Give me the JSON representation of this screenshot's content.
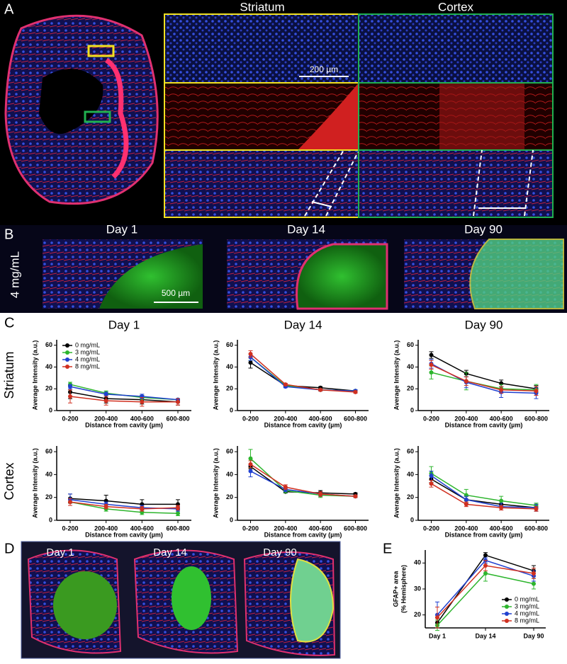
{
  "panel_a": {
    "label": "A",
    "columns": [
      "Striatum",
      "Cortex"
    ],
    "scale_bar": "200 µm"
  },
  "panel_b": {
    "label": "B",
    "row_label": "4 mg/mL",
    "columns": [
      "Day 1",
      "Day 14",
      "Day 90"
    ],
    "scale_bar": "500 µm"
  },
  "panel_c": {
    "label": "C",
    "row_labels": [
      "Striatum",
      "Cortex"
    ]
  },
  "panel_d": {
    "label": "D",
    "columns": [
      "Day 1",
      "Day 14",
      "Day 90"
    ]
  },
  "panel_e": {
    "label": "E"
  },
  "chart_data": [
    {
      "type": "line",
      "title": "Day 1",
      "y_label": "Average Intensity (a.u.)",
      "x_label": "Distance from cavity (µm)",
      "categories": [
        "0-200",
        "200-400",
        "400-600",
        "600-800"
      ],
      "ylim": [
        0,
        65
      ],
      "yticks": [
        0,
        20,
        40,
        60
      ],
      "legend": "top-left",
      "series": [
        {
          "name": "0 mg/mL",
          "color": "#000000",
          "values": [
            17,
            11,
            10,
            8
          ],
          "errors": [
            6,
            4,
            4,
            3
          ]
        },
        {
          "name": "3 mg/mL",
          "color": "#2db52d",
          "values": [
            24,
            16,
            12,
            10
          ],
          "errors": [
            2,
            2,
            2,
            1
          ]
        },
        {
          "name": "4 mg/mL",
          "color": "#2040d0",
          "values": [
            22,
            15,
            13,
            10
          ],
          "errors": [
            2,
            2,
            2,
            1
          ]
        },
        {
          "name": "8 mg/mL",
          "color": "#d03020",
          "values": [
            13,
            9,
            8,
            8
          ],
          "errors": [
            6,
            4,
            4,
            3
          ]
        }
      ]
    },
    {
      "type": "line",
      "title": "Day 14",
      "y_label": "Average Intensity (a.u.)",
      "x_label": "Distance from cavity (µm)",
      "categories": [
        "0-200",
        "200-400",
        "400-600",
        "600-800"
      ],
      "ylim": [
        0,
        65
      ],
      "yticks": [
        0,
        20,
        40,
        60
      ],
      "series": [
        {
          "color": "#000000",
          "values": [
            44,
            23,
            21,
            18
          ],
          "errors": [
            5,
            1,
            1,
            1
          ]
        },
        {
          "color": "#2db52d",
          "values": [
            49,
            23,
            19,
            18
          ],
          "errors": [
            3,
            1,
            1,
            1
          ]
        },
        {
          "color": "#2040d0",
          "values": [
            49,
            22,
            19,
            18
          ],
          "errors": [
            3,
            1,
            1,
            1
          ]
        },
        {
          "color": "#d03020",
          "values": [
            52,
            24,
            19,
            17
          ],
          "errors": [
            3,
            1,
            1,
            1
          ]
        }
      ]
    },
    {
      "type": "line",
      "title": "Day 90",
      "y_label": "Average Intensity (a.u.)",
      "x_label": "Distance from cavity (µm)",
      "categories": [
        "0-200",
        "200-400",
        "400-600",
        "600-800"
      ],
      "ylim": [
        0,
        65
      ],
      "yticks": [
        0,
        20,
        40,
        60
      ],
      "series": [
        {
          "color": "#000000",
          "values": [
            51,
            34,
            25,
            20
          ],
          "errors": [
            3,
            3,
            3,
            3
          ]
        },
        {
          "color": "#2db52d",
          "values": [
            35,
            27,
            20,
            19
          ],
          "errors": [
            6,
            8,
            4,
            5
          ]
        },
        {
          "color": "#2040d0",
          "values": [
            43,
            26,
            17,
            16
          ],
          "errors": [
            4,
            5,
            5,
            5
          ]
        },
        {
          "color": "#d03020",
          "values": [
            42,
            27,
            19,
            18
          ],
          "errors": [
            4,
            4,
            3,
            4
          ]
        }
      ]
    },
    {
      "type": "line",
      "y_label": "Average Intensity (a.u.)",
      "x_label": "Distance from cavity (µm)",
      "categories": [
        "0-200",
        "200-400",
        "400-600",
        "600-800"
      ],
      "ylim": [
        0,
        65
      ],
      "yticks": [
        0,
        20,
        40,
        60
      ],
      "series": [
        {
          "color": "#000000",
          "values": [
            19,
            17,
            14,
            14
          ],
          "errors": [
            4,
            5,
            4,
            4
          ]
        },
        {
          "color": "#2db52d",
          "values": [
            16,
            10,
            7,
            6
          ],
          "errors": [
            3,
            2,
            2,
            2
          ]
        },
        {
          "color": "#2040d0",
          "values": [
            18,
            14,
            11,
            10
          ],
          "errors": [
            5,
            2,
            2,
            2
          ]
        },
        {
          "color": "#d03020",
          "values": [
            16,
            12,
            10,
            11
          ],
          "errors": [
            3,
            2,
            2,
            2
          ]
        }
      ]
    },
    {
      "type": "line",
      "y_label": "Average Intensity (a.u.)",
      "x_label": "Distance from cavity (µm)",
      "categories": [
        "0-200",
        "200-400",
        "400-600",
        "600-800"
      ],
      "ylim": [
        0,
        65
      ],
      "yticks": [
        0,
        20,
        40,
        60
      ],
      "series": [
        {
          "color": "#000000",
          "values": [
            47,
            25,
            24,
            23
          ],
          "errors": [
            2,
            1,
            2,
            1
          ]
        },
        {
          "color": "#2db52d",
          "values": [
            54,
            26,
            22,
            21
          ],
          "errors": [
            8,
            2,
            2,
            1
          ]
        },
        {
          "color": "#2040d0",
          "values": [
            43,
            27,
            23,
            21
          ],
          "errors": [
            5,
            2,
            2,
            1
          ]
        },
        {
          "color": "#d03020",
          "values": [
            49,
            29,
            23,
            21
          ],
          "errors": [
            3,
            2,
            2,
            1
          ]
        }
      ]
    },
    {
      "type": "line",
      "y_label": "Average Intensity (a.u.)",
      "x_label": "Distance from cavity (µm)",
      "categories": [
        "0-200",
        "200-400",
        "400-600",
        "600-800"
      ],
      "ylim": [
        0,
        65
      ],
      "yticks": [
        0,
        20,
        40,
        60
      ],
      "series": [
        {
          "color": "#000000",
          "values": [
            36,
            18,
            14,
            11
          ],
          "errors": [
            3,
            3,
            3,
            3
          ]
        },
        {
          "color": "#2db52d",
          "values": [
            41,
            22,
            17,
            13
          ],
          "errors": [
            6,
            5,
            4,
            2
          ]
        },
        {
          "color": "#2040d0",
          "values": [
            39,
            18,
            12,
            11
          ],
          "errors": [
            4,
            3,
            3,
            3
          ]
        },
        {
          "color": "#d03020",
          "values": [
            32,
            14,
            11,
            10
          ],
          "errors": [
            3,
            2,
            2,
            2
          ]
        }
      ]
    },
    {
      "type": "line",
      "y_label": [
        "GFAP+ area",
        "(% Hemisphere)"
      ],
      "categories": [
        "Day 1",
        "Day 14",
        "Day 90"
      ],
      "ylim": [
        15,
        45
      ],
      "yticks": [
        20,
        30,
        40
      ],
      "legend": "bottom-right",
      "series": [
        {
          "name": "0 mg/mL",
          "color": "#000000",
          "values": [
            17,
            43,
            37
          ],
          "errors": [
            2,
            1,
            2
          ]
        },
        {
          "name": "3 mg/mL",
          "color": "#2db52d",
          "values": [
            16,
            36,
            32
          ],
          "errors": [
            2,
            3,
            2
          ]
        },
        {
          "name": "4 mg/mL",
          "color": "#2040d0",
          "values": [
            20,
            41,
            35
          ],
          "errors": [
            5,
            1,
            2
          ]
        },
        {
          "name": "8 mg/mL",
          "color": "#d03020",
          "values": [
            19,
            39,
            36
          ],
          "errors": [
            4,
            2,
            2
          ]
        }
      ]
    }
  ]
}
